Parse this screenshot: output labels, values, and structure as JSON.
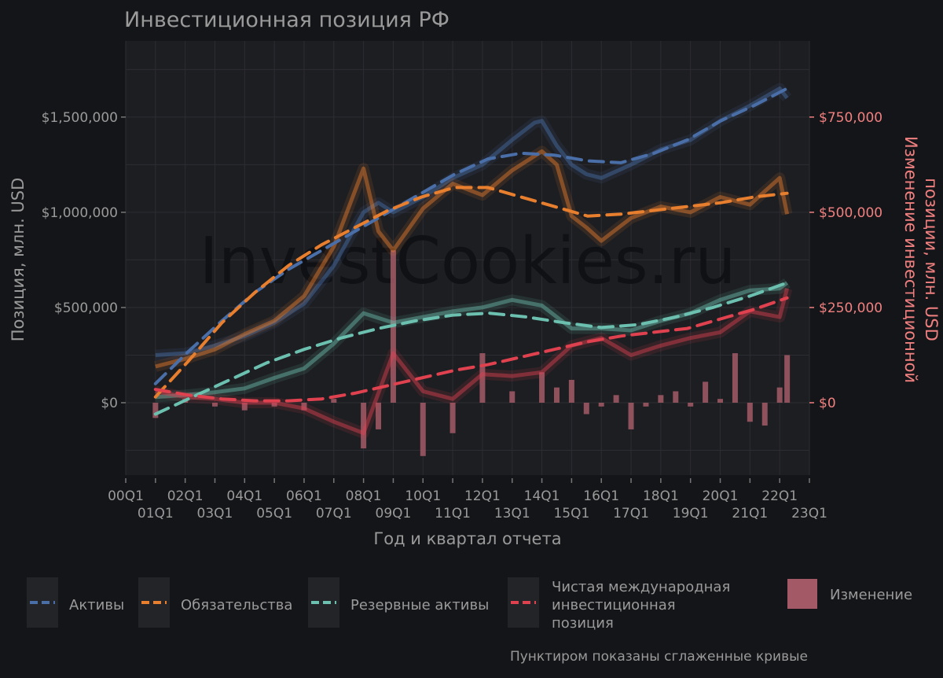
{
  "title": "Инвестиционная позиция РФ",
  "watermark": "InvestCookies.ru",
  "note": "Пунктиром показаны сглаженные кривые",
  "colors": {
    "background": "#141518",
    "panel": "#1d1e22",
    "grid": "#2c2d32",
    "text": "#9a9a9a",
    "assets": "#4a6fa8",
    "liabilities": "#e87f2e",
    "reserves": "#6cc0b0",
    "niip": "#e0414f",
    "change": "#a35a66",
    "right_axis": "#f08080"
  },
  "chart_data": {
    "type": "line",
    "x_axis": {
      "label": "Год и квартал отчета",
      "ticks_upper": [
        "00Q1",
        "02Q1",
        "04Q1",
        "06Q1",
        "08Q1",
        "10Q1",
        "12Q1",
        "14Q1",
        "16Q1",
        "18Q1",
        "20Q1",
        "22Q1"
      ],
      "ticks_lower": [
        "01Q1",
        "03Q1",
        "05Q1",
        "07Q1",
        "09Q1",
        "11Q1",
        "13Q1",
        "15Q1",
        "17Q1",
        "19Q1",
        "21Q1",
        "23Q1"
      ],
      "range": [
        2000.0,
        2023.0
      ]
    },
    "y_left": {
      "label": "Позиция, млн. USD",
      "ticks": [
        "$0",
        "$500,000",
        "$1,000,000",
        "$1,500,000"
      ],
      "tick_values": [
        0,
        500000,
        1000000,
        1500000
      ],
      "range": [
        -380000,
        1900000
      ]
    },
    "y_right": {
      "label": "Изменение инвестиционной позиции, млн. USD",
      "ticks": [
        "$0",
        "$250,000",
        "$500,000",
        "$750,000"
      ],
      "tick_values": [
        0,
        250000,
        500000,
        750000
      ],
      "range": [
        -190000,
        950000
      ]
    },
    "series": [
      {
        "name": "Активы",
        "color": "#4a6fa8",
        "x": [
          2001,
          2002,
          2003,
          2004,
          2005,
          2006,
          2007,
          2008,
          2008.5,
          2009,
          2010,
          2011,
          2012,
          2013,
          2013.75,
          2014,
          2014.5,
          2015,
          2015.5,
          2016,
          2017,
          2018,
          2019,
          2020,
          2021,
          2022,
          2022.25
        ],
        "y": [
          250000,
          260000,
          300000,
          350000,
          420000,
          520000,
          720000,
          1000000,
          1050000,
          1000000,
          1080000,
          1180000,
          1250000,
          1380000,
          1470000,
          1480000,
          1350000,
          1250000,
          1200000,
          1180000,
          1250000,
          1330000,
          1380000,
          1480000,
          1560000,
          1650000,
          1600000
        ],
        "smooth": [
          100000,
          270000,
          430000,
          580000,
          700000,
          800000,
          900000,
          1000000,
          1100000,
          1200000,
          1280000,
          1310000,
          1300000,
          1270000,
          1260000,
          1310000,
          1380000,
          1480000,
          1560000,
          1650000
        ]
      },
      {
        "name": "Обязательства",
        "color": "#e87f2e",
        "x": [
          2001,
          2002,
          2003,
          2004,
          2005,
          2006,
          2007,
          2008,
          2008.5,
          2009,
          2010,
          2011,
          2012,
          2013,
          2014,
          2014.5,
          2015,
          2015.5,
          2016,
          2017,
          2018,
          2019,
          2020,
          2021,
          2022,
          2022.25
        ],
        "y": [
          190000,
          230000,
          280000,
          360000,
          430000,
          560000,
          820000,
          1230000,
          900000,
          800000,
          1020000,
          1150000,
          1090000,
          1220000,
          1320000,
          1250000,
          980000,
          920000,
          850000,
          970000,
          1030000,
          1000000,
          1080000,
          1040000,
          1180000,
          990000
        ],
        "smooth": [
          30000,
          220000,
          420000,
          580000,
          720000,
          830000,
          920000,
          1010000,
          1080000,
          1130000,
          1130000,
          1080000,
          1030000,
          980000,
          990000,
          1010000,
          1030000,
          1050000,
          1080000,
          1100000
        ]
      },
      {
        "name": "Резервные активы",
        "color": "#6cc0b0",
        "x": [
          2001,
          2002,
          2003,
          2004,
          2005,
          2006,
          2007,
          2008,
          2009,
          2010,
          2011,
          2012,
          2013,
          2014,
          2015,
          2016,
          2017,
          2018,
          2019,
          2020,
          2021,
          2022,
          2022.25
        ],
        "y": [
          30000,
          40000,
          55000,
          75000,
          130000,
          180000,
          310000,
          470000,
          420000,
          450000,
          480000,
          500000,
          540000,
          510000,
          390000,
          390000,
          380000,
          430000,
          470000,
          540000,
          590000,
          600000,
          630000
        ],
        "smooth": [
          -60000,
          30000,
          120000,
          210000,
          280000,
          340000,
          390000,
          430000,
          460000,
          470000,
          450000,
          420000,
          395000,
          410000,
          450000,
          500000,
          560000,
          630000
        ]
      },
      {
        "name": "Чистая международная инвестиционная позиция",
        "color": "#e0414f",
        "x": [
          2001,
          2002,
          2003,
          2004,
          2005,
          2006,
          2007,
          2008,
          2009,
          2010,
          2011,
          2012,
          2013,
          2014,
          2015,
          2016,
          2017,
          2018,
          2019,
          2020,
          2021,
          2022,
          2022.25
        ],
        "y": [
          60000,
          30000,
          20000,
          0,
          0,
          -30000,
          -100000,
          -160000,
          260000,
          60000,
          20000,
          150000,
          140000,
          160000,
          300000,
          340000,
          250000,
          300000,
          340000,
          370000,
          480000,
          450000,
          600000
        ],
        "smooth": [
          70000,
          40000,
          20000,
          10000,
          10000,
          20000,
          50000,
          90000,
          130000,
          170000,
          200000,
          240000,
          280000,
          320000,
          350000,
          370000,
          390000,
          440000,
          490000,
          550000
        ]
      }
    ],
    "bars": {
      "name": "Изменение",
      "color": "#a35a66",
      "x": [
        2001,
        2002,
        2003,
        2004,
        2005,
        2006,
        2007,
        2008,
        2008.5,
        2009,
        2010,
        2011,
        2012,
        2013,
        2014,
        2014.5,
        2015,
        2015.5,
        2016,
        2016.5,
        2017,
        2017.5,
        2018,
        2018.5,
        2019,
        2019.5,
        2020,
        2020.5,
        2021,
        2021.5,
        2022,
        2022.25
      ],
      "y": [
        -40000,
        10000,
        -10000,
        -20000,
        -10000,
        -20000,
        10000,
        -120000,
        -70000,
        400000,
        -140000,
        -80000,
        130000,
        30000,
        80000,
        40000,
        60000,
        -30000,
        -10000,
        20000,
        -70000,
        -10000,
        20000,
        30000,
        -10000,
        55000,
        10000,
        130000,
        -50000,
        -60000,
        40000,
        125000
      ]
    }
  },
  "legend": {
    "items": [
      {
        "label": "Активы",
        "color": "#4a6fa8"
      },
      {
        "label": "Обязательства",
        "color": "#e87f2e"
      },
      {
        "label": "Резервные активы",
        "color": "#6cc0b0"
      },
      {
        "label": "Чистая международная инвестиционная позиция",
        "color": "#e0414f"
      },
      {
        "label": "Изменение",
        "color": "#a35a66"
      }
    ]
  }
}
